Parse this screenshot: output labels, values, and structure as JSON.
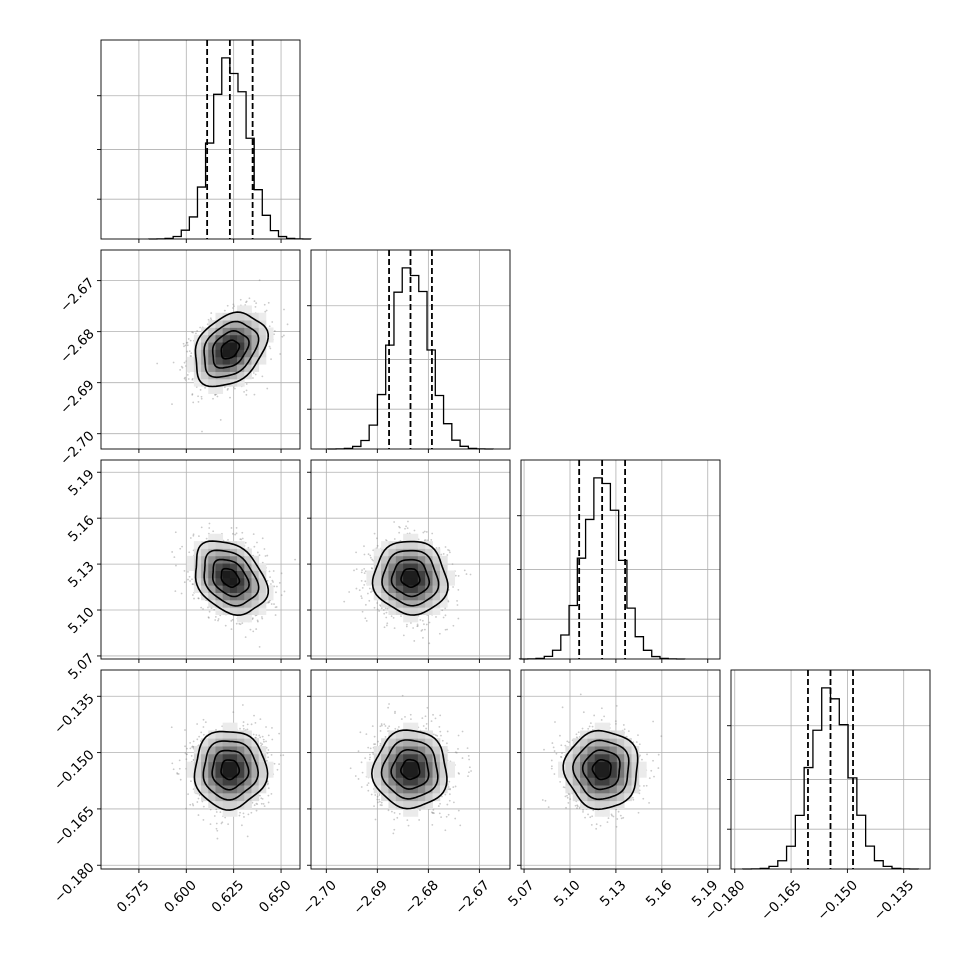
{
  "chart_data": {
    "type": "corner",
    "grid": true,
    "parameters": [
      {
        "ticks": [
          0.575,
          0.6,
          0.625,
          0.65
        ],
        "tick_labels": [
          "0.575",
          "0.600",
          "0.625",
          "0.650"
        ],
        "range": [
          0.555,
          0.66
        ],
        "mean": 0.623,
        "sigma": 0.0095,
        "quantiles": [
          0.611,
          0.623,
          0.635
        ]
      },
      {
        "ticks": [
          -2.7,
          -2.69,
          -2.68,
          -2.67
        ],
        "tick_labels": [
          "−2.70",
          "−2.69",
          "−2.68",
          "−2.67"
        ],
        "range": [
          -2.703,
          -2.664
        ],
        "mean": -2.6835,
        "sigma": 0.0036,
        "quantiles": [
          -2.6877,
          -2.6835,
          -2.6793
        ]
      },
      {
        "ticks": [
          5.07,
          5.1,
          5.13,
          5.16,
          5.19
        ],
        "tick_labels": [
          "5.07",
          "5.10",
          "5.13",
          "5.16",
          "5.19"
        ],
        "range": [
          5.068,
          5.198
        ],
        "mean": 5.121,
        "sigma": 0.012,
        "quantiles": [
          5.106,
          5.121,
          5.136
        ]
      },
      {
        "ticks": [
          -0.18,
          -0.165,
          -0.15,
          -0.135
        ],
        "tick_labels": [
          "−0.180",
          "−0.165",
          "−0.150",
          "−0.135"
        ],
        "range": [
          -0.181,
          -0.128
        ],
        "mean": -0.1545,
        "sigma": 0.0052,
        "quantiles": [
          -0.1605,
          -0.1545,
          -0.1485
        ]
      }
    ],
    "correlations": {
      "1-0": 0.3,
      "2-0": -0.3,
      "2-1": -0.05,
      "3-0": 0.0,
      "3-1": 0.0,
      "3-2": 0.0
    }
  }
}
